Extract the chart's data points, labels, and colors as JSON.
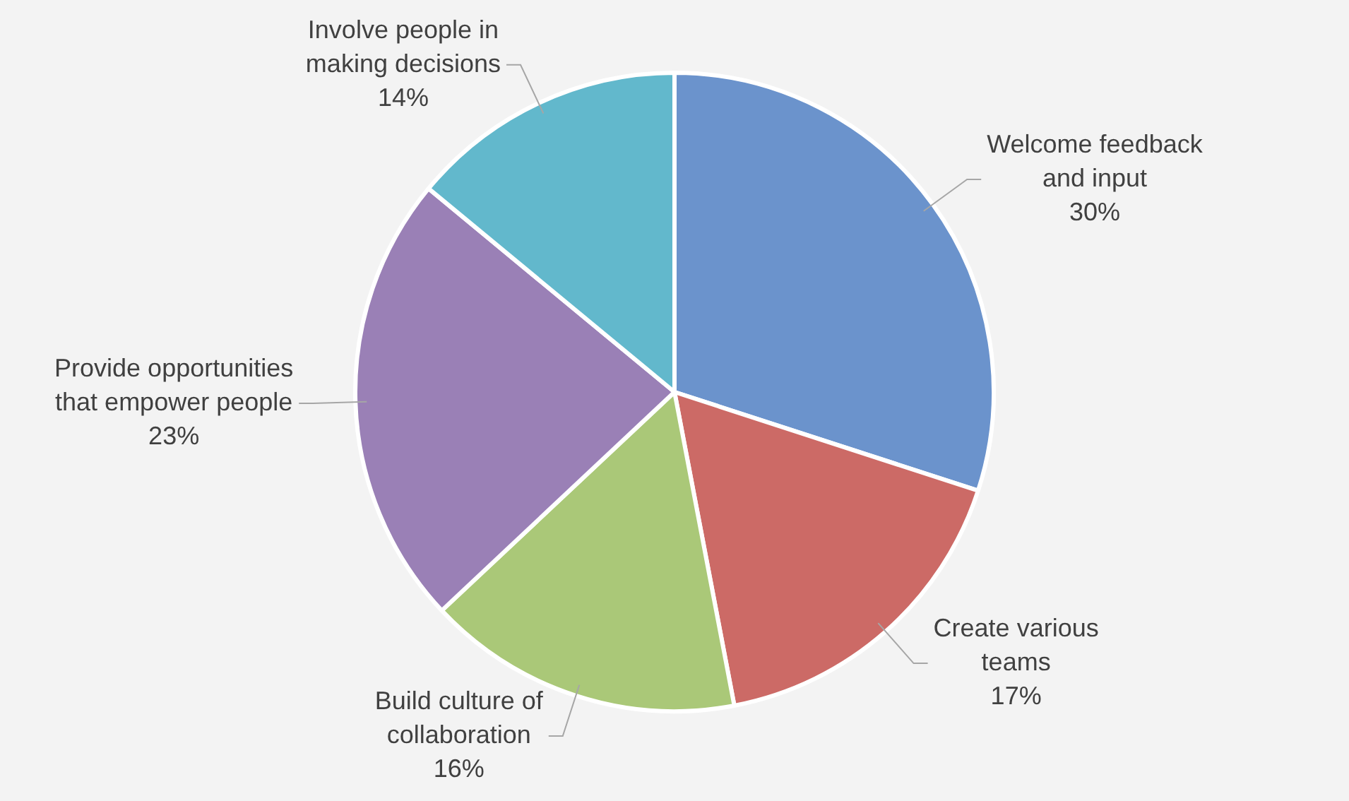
{
  "chart_data": {
    "type": "pie",
    "categories": [
      "Welcome feedback and input",
      "Create various teams",
      "Build culture of collaboration",
      "Provide opportunities that empower people",
      "Involve people in making decisions"
    ],
    "values": [
      30,
      17,
      16,
      23,
      14
    ],
    "colors": [
      "#6b93cc",
      "#cc6a66",
      "#aac878",
      "#9a80b6",
      "#62b8cc"
    ],
    "value_labels": [
      "30%",
      "17%",
      "16%",
      "23%",
      "14%"
    ],
    "legend": false
  }
}
